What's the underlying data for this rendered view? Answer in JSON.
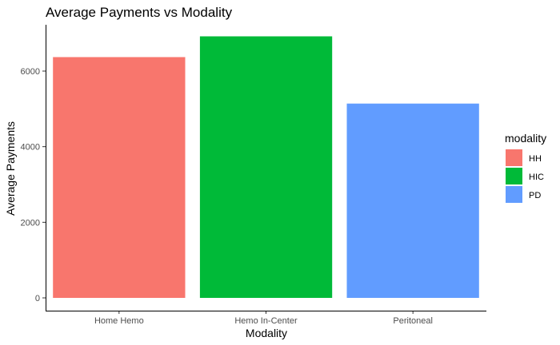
{
  "chart_data": {
    "type": "bar",
    "title": "Average Payments vs Modality",
    "xlabel": "Modality",
    "ylabel": "Average Payments",
    "categories": [
      "Home Hemo",
      "Hemo In-Center",
      "Peritoneal"
    ],
    "values": [
      6370,
      6920,
      5140
    ],
    "bar_colors": [
      "#F8766D",
      "#00BA38",
      "#619CFF"
    ],
    "ylim": [
      0,
      7000
    ],
    "yticks": [
      0,
      2000,
      4000,
      6000
    ],
    "grid": false,
    "legend": {
      "title": "modality",
      "placement": "right",
      "entries": [
        {
          "label": "HH",
          "color": "#F8766D"
        },
        {
          "label": "HIC",
          "color": "#00BA38"
        },
        {
          "label": "PD",
          "color": "#619CFF"
        }
      ]
    }
  }
}
